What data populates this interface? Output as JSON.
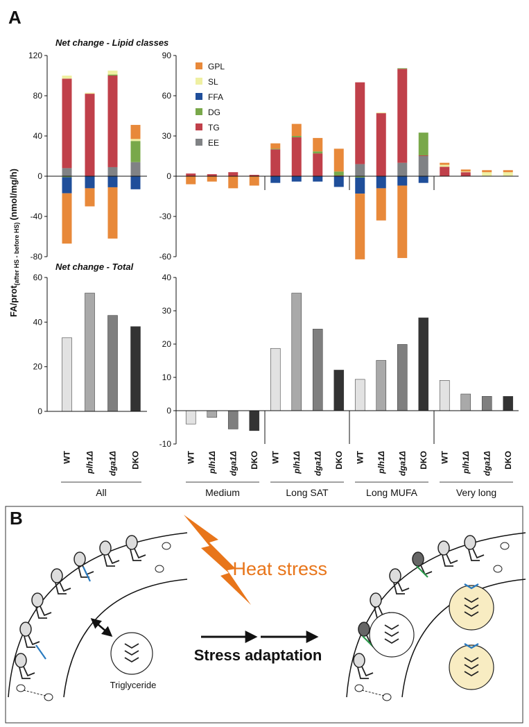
{
  "panels": [
    "A",
    "B"
  ],
  "y_label": {
    "main": "FA/prot",
    "sub": "(after HS - before HS)",
    "unit": "(nmol/mg/h)"
  },
  "chart_data": [
    {
      "type": "bar",
      "stacked": true,
      "title": "Net change - Lipid classes",
      "ylim": [
        -80,
        120
      ],
      "yticks": [
        -80,
        -40,
        0,
        40,
        80,
        120
      ],
      "series": [
        {
          "name": "GPL",
          "color": "#e8893a",
          "values": [
            -50,
            -18,
            -51,
            14
          ]
        },
        {
          "name": "SL",
          "color": "#eff0a2",
          "values": [
            3,
            1,
            4,
            2
          ]
        },
        {
          "name": "FFA",
          "color": "#1f4e9a",
          "values": [
            -16,
            -12,
            -11,
            -13
          ]
        },
        {
          "name": "DG",
          "color": "#79a84a",
          "values": [
            -1,
            0,
            1,
            21
          ]
        },
        {
          "name": "TG",
          "color": "#c0404a",
          "values": [
            89,
            82,
            91,
            0
          ]
        },
        {
          "name": "EE",
          "color": "#808285",
          "values": [
            8,
            0,
            9,
            14
          ]
        }
      ]
    },
    {
      "type": "bar",
      "stacked": true,
      "legend": "top-left",
      "ylim": [
        -60,
        90
      ],
      "yticks": [
        -60,
        -30,
        0,
        30,
        60,
        90
      ],
      "series": [
        {
          "name": "GPL",
          "color": "#e8893a",
          "values": [
            -6,
            -4,
            -9,
            -7,
            4,
            9,
            10,
            17,
            -49,
            -24,
            -54,
            0,
            1.5,
            1.5,
            1.5,
            1.5
          ]
        },
        {
          "name": "SL",
          "color": "#eff0a2",
          "values": [
            0,
            0,
            0,
            0,
            0,
            0,
            0,
            0,
            0,
            0.5,
            0,
            0,
            1.5,
            0.5,
            3,
            3
          ]
        },
        {
          "name": "FFA",
          "color": "#1f4e9a",
          "values": [
            0,
            0,
            0,
            0,
            -5,
            -4,
            -4,
            -8,
            -12,
            -9,
            -7,
            -5,
            0,
            0,
            0,
            0
          ]
        },
        {
          "name": "DG",
          "color": "#79a84a",
          "values": [
            0,
            0,
            0,
            0,
            0.5,
            1,
            1.5,
            3,
            -1,
            0,
            0.5,
            17,
            0,
            0,
            0,
            0
          ]
        },
        {
          "name": "TG",
          "color": "#c0404a",
          "values": [
            2,
            1.5,
            3,
            1,
            20,
            29,
            17,
            0.5,
            61,
            47,
            70,
            0.5,
            7,
            3,
            0,
            0
          ]
        },
        {
          "name": "EE",
          "color": "#808285",
          "values": [
            0,
            0,
            0,
            0,
            0,
            0,
            0,
            0,
            9,
            0,
            10,
            15,
            0,
            0,
            0,
            0
          ]
        }
      ]
    },
    {
      "type": "bar",
      "title": "Net change - Total",
      "ylim": [
        0,
        60
      ],
      "yticks": [
        0,
        20,
        40,
        60
      ],
      "groups": [
        {
          "name": "All",
          "categories": [
            "WT",
            "plh1Δ",
            "dga1Δ",
            "DKO"
          ]
        }
      ],
      "values": [
        33,
        53,
        43,
        38
      ],
      "colors": [
        "#e2e2e2",
        "#a9a9a9",
        "#7f7f7f",
        "#333333"
      ]
    },
    {
      "type": "bar",
      "ylim": [
        -10,
        40
      ],
      "yticks": [
        -10,
        0,
        10,
        20,
        30,
        40
      ],
      "groups": [
        {
          "name": "Medium",
          "categories": [
            "WT",
            "plh1Δ",
            "dga1Δ",
            "DKO"
          ]
        },
        {
          "name": "Long SAT",
          "categories": [
            "WT",
            "plh1Δ",
            "dga1Δ",
            "DKO"
          ]
        },
        {
          "name": "Long MUFA",
          "categories": [
            "WT",
            "plh1Δ",
            "dga1Δ",
            "DKO"
          ]
        },
        {
          "name": "Very long",
          "categories": [
            "WT",
            "plh1Δ",
            "dga1Δ",
            "DKO"
          ]
        }
      ],
      "values": [
        -4,
        -2,
        -5.5,
        -6,
        18.7,
        35.3,
        24.5,
        12.2,
        9.4,
        15.1,
        19.9,
        27.9,
        9.1,
        5,
        4.3,
        4.3
      ],
      "colors": [
        "#e2e2e2",
        "#a9a9a9",
        "#7f7f7f",
        "#333333",
        "#e2e2e2",
        "#a9a9a9",
        "#7f7f7f",
        "#333333",
        "#e2e2e2",
        "#a9a9a9",
        "#7f7f7f",
        "#333333",
        "#e2e2e2",
        "#a9a9a9",
        "#7f7f7f",
        "#333333"
      ]
    }
  ],
  "diagram": {
    "heat": "Heat stress",
    "adaptation": "Stress adaptation",
    "triglyceride": "Triglyceride"
  }
}
